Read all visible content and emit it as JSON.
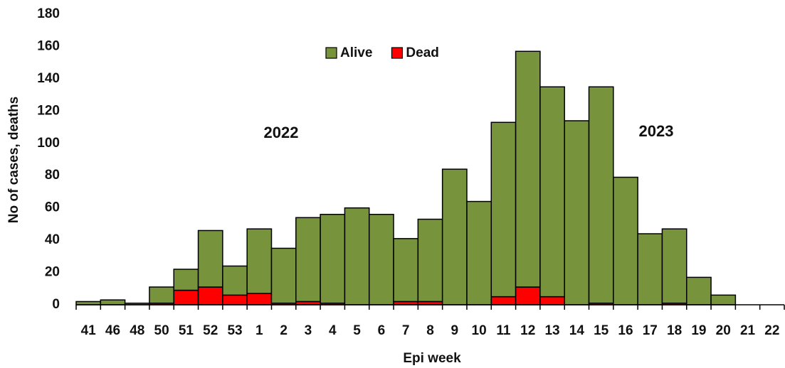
{
  "chart_data": {
    "type": "stacked_bar",
    "xlabel": "Epi week",
    "ylabel": "No of cases, deaths",
    "annotations": [
      "2022",
      "2023"
    ],
    "categories": [
      "41",
      "46",
      "48",
      "50",
      "51",
      "52",
      "53",
      "1",
      "2",
      "3",
      "4",
      "5",
      "6",
      "7",
      "8",
      "9",
      "10",
      "11",
      "12",
      "13",
      "14",
      "15",
      "16",
      "17",
      "18",
      "19",
      "20",
      "21",
      "22"
    ],
    "series": [
      {
        "name": "Dead",
        "color": "#ff0000",
        "values": [
          0,
          0,
          0,
          1,
          9,
          11,
          6,
          7,
          1,
          2,
          1,
          0,
          0,
          2,
          2,
          0,
          0,
          5,
          11,
          5,
          0,
          1,
          0,
          0,
          1,
          0,
          0,
          0,
          0
        ]
      },
      {
        "name": "Alive",
        "color": "#77933c",
        "values": [
          2,
          3,
          1,
          10,
          13,
          35,
          18,
          40,
          34,
          52,
          55,
          60,
          56,
          39,
          51,
          84,
          64,
          108,
          146,
          130,
          114,
          134,
          79,
          44,
          46,
          17,
          6,
          0,
          0
        ]
      }
    ],
    "legend_order": [
      1,
      0
    ],
    "ylim": [
      0,
      180
    ],
    "yticks": [
      0,
      20,
      40,
      60,
      80,
      100,
      120,
      140,
      160,
      180
    ]
  }
}
